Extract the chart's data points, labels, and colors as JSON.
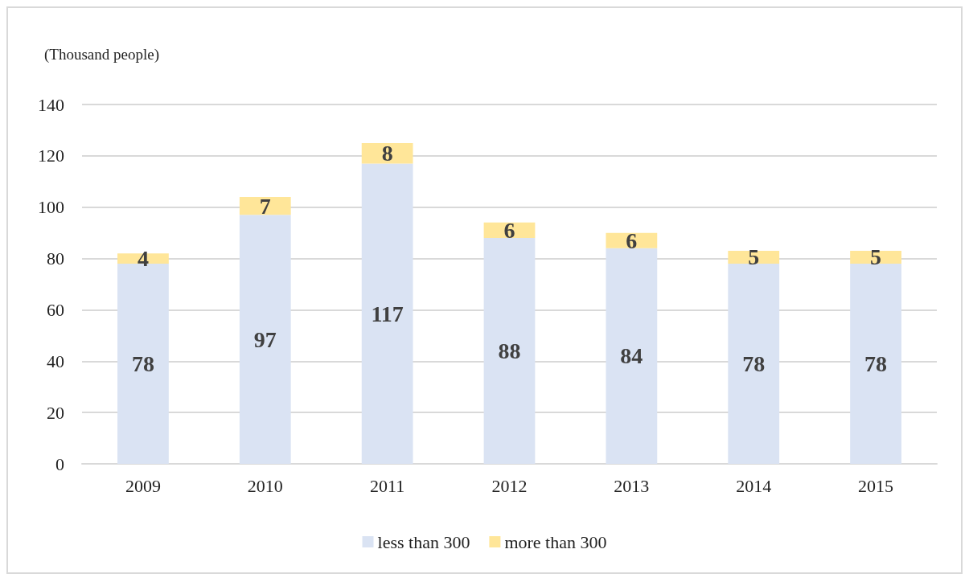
{
  "chart_data": {
    "type": "bar",
    "stacked": true,
    "ylabel": "(Thousand people)",
    "categories": [
      "2009",
      "2010",
      "2011",
      "2012",
      "2013",
      "2014",
      "2015"
    ],
    "series": [
      {
        "name": "less than 300",
        "color": "#dae3f3",
        "values": [
          78,
          97,
          117,
          88,
          84,
          78,
          78
        ]
      },
      {
        "name": "more than 300",
        "color": "#ffe699",
        "values": [
          4,
          7,
          8,
          6,
          6,
          5,
          5
        ]
      }
    ],
    "ylim": [
      0,
      140
    ],
    "yticks": [
      0,
      20,
      40,
      60,
      80,
      100,
      120,
      140
    ],
    "grid": "y",
    "legend": "bottom",
    "data_labels": true
  }
}
